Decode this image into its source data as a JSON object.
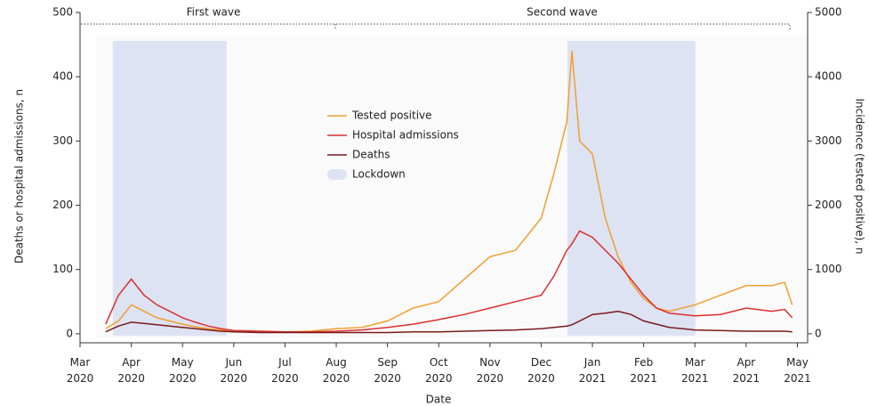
{
  "chart_data": {
    "type": "line",
    "xlabel": "Date",
    "ylabel": "Deaths or hospital admissions, n",
    "y2label": "Incidence (tested positive), n",
    "annotations": [
      "First wave",
      "Second wave"
    ],
    "lockdown": {
      "name": "Lockdown",
      "color": "#dde3f3",
      "ranges": [
        [
          0.64,
          2.86
        ],
        [
          9.51,
          12.01
        ]
      ]
    },
    "x": [
      0.5,
      0.75,
      1,
      1.25,
      1.5,
      1.75,
      2,
      2.25,
      2.5,
      2.75,
      3,
      3.5,
      4,
      4.5,
      5,
      5.5,
      6,
      6.5,
      7,
      7.5,
      8,
      8.5,
      9,
      9.25,
      9.5,
      9.6,
      9.75,
      10,
      10.25,
      10.5,
      10.75,
      11,
      11.25,
      11.5,
      11.75,
      12,
      12.5,
      13,
      13.5,
      13.75,
      13.9
    ],
    "series": [
      {
        "name": "Tested positive",
        "color": "#f0a030",
        "axis": "y2",
        "values": [
          80,
          200,
          450,
          350,
          250,
          200,
          150,
          110,
          80,
          60,
          50,
          40,
          30,
          40,
          80,
          100,
          200,
          400,
          500,
          850,
          1200,
          1300,
          1800,
          2500,
          3300,
          4400,
          3000,
          2800,
          1800,
          1200,
          800,
          550,
          400,
          350,
          400,
          450,
          600,
          750,
          750,
          800,
          450
        ]
      },
      {
        "name": "Hospital admissions",
        "color": "#d93030",
        "values": [
          15,
          60,
          85,
          60,
          45,
          35,
          25,
          18,
          12,
          8,
          5,
          4,
          3,
          3,
          4,
          6,
          10,
          15,
          22,
          30,
          40,
          50,
          60,
          90,
          130,
          140,
          160,
          150,
          130,
          110,
          85,
          60,
          40,
          32,
          30,
          28,
          30,
          40,
          35,
          38,
          25
        ]
      },
      {
        "name": "Deaths",
        "color": "#7a1a1a",
        "values": [
          3,
          12,
          18,
          16,
          14,
          12,
          10,
          8,
          6,
          4,
          3,
          2,
          2,
          2,
          2,
          2,
          2,
          3,
          3,
          4,
          5,
          6,
          8,
          10,
          12,
          14,
          20,
          30,
          32,
          35,
          30,
          20,
          15,
          10,
          8,
          6,
          5,
          4,
          4,
          4,
          3
        ]
      }
    ],
    "xlim": [
      0,
      14.2
    ],
    "xticks": [
      {
        "value": 0,
        "label": "Mar 2020"
      },
      {
        "value": 1,
        "label": "Apr 2020"
      },
      {
        "value": 2,
        "label": "May 2020"
      },
      {
        "value": 3,
        "label": "Jun 2020"
      },
      {
        "value": 4,
        "label": "Jul 2020"
      },
      {
        "value": 5,
        "label": "Aug 2020"
      },
      {
        "value": 6,
        "label": "Sep 2020"
      },
      {
        "value": 7,
        "label": "Oct 2020"
      },
      {
        "value": 8,
        "label": "Nov 2020"
      },
      {
        "value": 9,
        "label": "Dec 2020"
      },
      {
        "value": 10,
        "label": "Jan 2021"
      },
      {
        "value": 11,
        "label": "Feb 2021"
      },
      {
        "value": 12,
        "label": "Mar 2021"
      },
      {
        "value": 13,
        "label": "Apr 2021"
      },
      {
        "value": 14,
        "label": "May 2021"
      }
    ],
    "ylim": [
      -14,
      500
    ],
    "yticks": [
      0,
      100,
      200,
      300,
      400,
      500
    ],
    "y2lim": [
      -140,
      5000
    ],
    "y2ticks": [
      0,
      1000,
      2000,
      3000,
      4000,
      5000
    ]
  }
}
